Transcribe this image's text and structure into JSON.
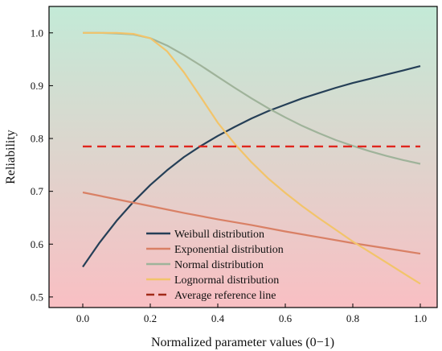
{
  "chart_data": {
    "type": "line",
    "title": "",
    "xlabel": "Normalized parameter values (0−1)",
    "ylabel": "Reliability",
    "xlim": [
      -0.1,
      1.05
    ],
    "ylim": [
      0.48,
      1.05
    ],
    "xticks": [
      0.0,
      0.2,
      0.4,
      0.6,
      0.8,
      1.0
    ],
    "yticks": [
      0.5,
      0.6,
      0.7,
      0.8,
      0.9,
      1.0
    ],
    "grid": false,
    "legend_position": "bottom-center",
    "background_gradient": {
      "top": "#c3ead7",
      "bottom": "#f9bfc3"
    },
    "series": [
      {
        "name": "Weibull distribution",
        "color": "#253f57",
        "style": "solid",
        "x": [
          0.0,
          0.05,
          0.1,
          0.15,
          0.2,
          0.25,
          0.3,
          0.35,
          0.4,
          0.45,
          0.5,
          0.55,
          0.6,
          0.65,
          0.7,
          0.75,
          0.8,
          0.85,
          0.9,
          0.95,
          1.0
        ],
        "y": [
          0.557,
          0.603,
          0.644,
          0.68,
          0.712,
          0.74,
          0.765,
          0.786,
          0.805,
          0.822,
          0.838,
          0.852,
          0.864,
          0.876,
          0.886,
          0.896,
          0.905,
          0.913,
          0.921,
          0.929,
          0.937
        ]
      },
      {
        "name": "Exponential distribution",
        "color": "#d98065",
        "style": "solid",
        "x": [
          0.0,
          0.1,
          0.2,
          0.3,
          0.4,
          0.5,
          0.6,
          0.7,
          0.8,
          0.9,
          1.0
        ],
        "y": [
          0.698,
          0.685,
          0.672,
          0.659,
          0.647,
          0.636,
          0.624,
          0.613,
          0.602,
          0.592,
          0.582
        ]
      },
      {
        "name": "Normal distribution",
        "color": "#9fb39a",
        "style": "solid",
        "x": [
          0.0,
          0.05,
          0.1,
          0.15,
          0.2,
          0.25,
          0.3,
          0.35,
          0.4,
          0.45,
          0.5,
          0.55,
          0.6,
          0.65,
          0.7,
          0.75,
          0.8,
          0.85,
          0.9,
          0.95,
          1.0
        ],
        "y": [
          1.0,
          1.0,
          0.999,
          0.997,
          0.99,
          0.976,
          0.958,
          0.938,
          0.917,
          0.896,
          0.876,
          0.857,
          0.84,
          0.824,
          0.81,
          0.797,
          0.786,
          0.776,
          0.767,
          0.759,
          0.752
        ]
      },
      {
        "name": "Lognormal distribution",
        "color": "#f2c46a",
        "style": "solid",
        "x": [
          0.0,
          0.05,
          0.1,
          0.15,
          0.2,
          0.25,
          0.3,
          0.35,
          0.4,
          0.45,
          0.5,
          0.55,
          0.6,
          0.65,
          0.7,
          0.75,
          0.8,
          0.85,
          0.9,
          0.95,
          1.0
        ],
        "y": [
          1.0,
          1.0,
          1.0,
          0.998,
          0.99,
          0.965,
          0.925,
          0.878,
          0.83,
          0.79,
          0.755,
          0.724,
          0.697,
          0.672,
          0.649,
          0.627,
          0.605,
          0.585,
          0.565,
          0.545,
          0.525
        ]
      },
      {
        "name": "Average reference line",
        "color": "#e0261e",
        "legend_color": "#a12a18",
        "style": "dashed",
        "x": [
          0.0,
          1.0
        ],
        "y": [
          0.785,
          0.785
        ]
      }
    ]
  }
}
